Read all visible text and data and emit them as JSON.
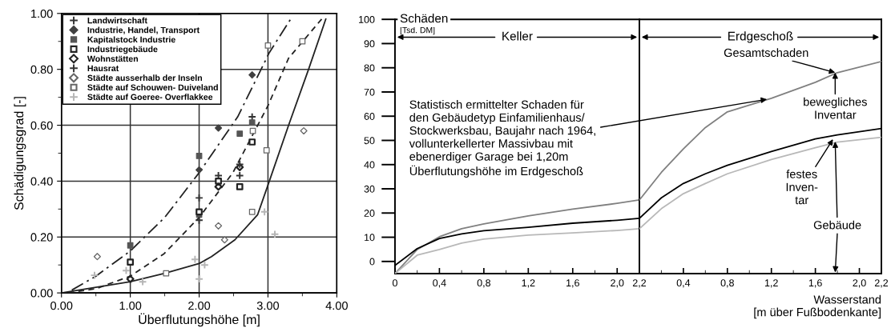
{
  "chart_data": [
    {
      "type": "scatter",
      "xlabel": "Überflutungshöhe [m]",
      "ylabel": "Schädigungsgrad [-]",
      "xlim": [
        0,
        4
      ],
      "ylim": [
        0,
        1
      ],
      "xticks": [
        {
          "value": 0,
          "label": "0.00"
        },
        {
          "value": 0.5,
          "label": null
        },
        {
          "value": 1,
          "label": "1.00"
        },
        {
          "value": 1.5,
          "label": null
        },
        {
          "value": 2,
          "label": "2.00"
        },
        {
          "value": 2.5,
          "label": null
        },
        {
          "value": 3,
          "label": "3.00"
        },
        {
          "value": 3.5,
          "label": null
        },
        {
          "value": 4,
          "label": "4.00"
        }
      ],
      "yticks": [
        {
          "value": 0,
          "label": "0.00"
        },
        {
          "value": 0.1,
          "label": null
        },
        {
          "value": 0.2,
          "label": "0.20"
        },
        {
          "value": 0.3,
          "label": null
        },
        {
          "value": 0.4,
          "label": "0.40"
        },
        {
          "value": 0.5,
          "label": null
        },
        {
          "value": 0.6,
          "label": "0.60"
        },
        {
          "value": 0.7,
          "label": null
        },
        {
          "value": 0.8,
          "label": "0.80"
        },
        {
          "value": 0.9,
          "label": null
        },
        {
          "value": 1,
          "label": "1.00"
        }
      ],
      "grid": true,
      "legend": "top left",
      "series": [
        {
          "name": "Landwirtschaft",
          "color": "#333333",
          "marker": "cross",
          "x": [
            2.0,
            2.28,
            2.77
          ],
          "values": [
            0.34,
            0.42,
            0.63
          ]
        },
        {
          "name": "Industrie, Handel, Transport",
          "color": "#404040",
          "marker": "diamond",
          "x": [
            2.0,
            2.28,
            2.77
          ],
          "values": [
            0.44,
            0.59,
            0.78
          ]
        },
        {
          "name": "Kapitalstock Industrie",
          "color": "#555555",
          "marker": "square",
          "x": [
            1.0,
            2.0,
            2.0,
            2.59,
            2.77
          ],
          "values": [
            0.17,
            0.49,
            0.28,
            0.57,
            0.61
          ]
        },
        {
          "name": "Industriegebäude",
          "color": "#222222",
          "marker": "square-open",
          "x": [
            1.0,
            2.0,
            2.28,
            2.59,
            2.77
          ],
          "values": [
            0.11,
            0.29,
            0.4,
            0.38,
            0.54
          ]
        },
        {
          "name": "Wohnstätten",
          "color": "#222222",
          "marker": "diamond-open",
          "x": [
            1.0,
            2.28,
            2.59
          ],
          "values": [
            0.05,
            0.38,
            0.45
          ]
        },
        {
          "name": "Hausrat",
          "color": "#333333",
          "marker": "cross",
          "x": [
            2.0,
            2.59,
            2.59
          ],
          "values": [
            0.26,
            0.42,
            0.46
          ]
        },
        {
          "name": "Städte ausserhalb der Inseln",
          "color": "#666666",
          "marker": "diamond-open",
          "x": [
            0.52,
            2.28,
            2.37,
            3.52
          ],
          "values": [
            0.13,
            0.24,
            0.19,
            0.58
          ]
        },
        {
          "name": "Städte auf Schouwen- Duiveland",
          "color": "#666666",
          "marker": "square-open",
          "x": [
            1.52,
            2.77,
            2.98,
            2.78,
            3.0,
            3.5
          ],
          "values": [
            0.07,
            0.29,
            0.51,
            0.58,
            0.885,
            0.9
          ]
        },
        {
          "name": "Städte auf Goeree- Overflakkee",
          "color": "#b5b5b5",
          "marker": "cross",
          "x": [
            0.48,
            0.94,
            1.18,
            1.94,
            2.0,
            2.08,
            2.95,
            3.1
          ],
          "values": [
            0.063,
            0.08,
            0.04,
            0.12,
            0.05,
            0.1,
            0.29,
            0.21
          ]
        },
        {
          "type": "line",
          "color": "#222222",
          "line_style": "solid",
          "marker": "none",
          "x": [
            0,
            0.5,
            1.0,
            1.5,
            2.0,
            2.18,
            2.52,
            2.85,
            3.02,
            3.3,
            3.59,
            3.84
          ],
          "values": [
            0,
            0.02,
            0.04,
            0.07,
            0.105,
            0.13,
            0.19,
            0.28,
            0.4,
            0.6,
            0.8,
            0.98
          ]
        },
        {
          "type": "line",
          "color": "#222222",
          "line_style": "dashed",
          "marker": "none",
          "x": [
            0.1,
            0.5,
            1.0,
            1.49,
            2.0,
            2.49,
            3.0,
            3.3,
            3.78
          ],
          "values": [
            0,
            0.015,
            0.06,
            0.14,
            0.27,
            0.43,
            0.67,
            0.84,
            0.98
          ]
        },
        {
          "type": "line",
          "color": "#222222",
          "line_style": "dashdot",
          "marker": "none",
          "x": [
            0.15,
            0.5,
            1.0,
            1.5,
            2.0,
            2.56,
            3.02,
            3.33
          ],
          "values": [
            0.01,
            0.06,
            0.15,
            0.27,
            0.43,
            0.63,
            0.86,
            0.98
          ]
        }
      ]
    },
    {
      "type": "line",
      "title": "Keller",
      "ylabel": "Schäden",
      "xlim": [
        0,
        2.2
      ],
      "ylim": [
        -5,
        100
      ],
      "xticks": [
        {
          "value": 0,
          "label": "0"
        },
        {
          "value": 0.2,
          "label": null
        },
        {
          "value": 0.4,
          "label": "0,4"
        },
        {
          "value": 0.6,
          "label": null
        },
        {
          "value": 0.8,
          "label": "0,8"
        },
        {
          "value": 1.0,
          "label": null
        },
        {
          "value": 1.2,
          "label": "1,2"
        },
        {
          "value": 1.4,
          "label": null
        },
        {
          "value": 1.6,
          "label": "1,6"
        },
        {
          "value": 1.8,
          "label": null
        },
        {
          "value": 2.0,
          "label": "2,0"
        },
        {
          "value": 2.2,
          "label": "2,2"
        }
      ],
      "yticks": [
        0,
        10,
        20,
        30,
        40,
        50,
        60,
        70,
        80,
        90,
        100
      ],
      "annotations": [
        "[Tsd. DM]"
      ],
      "series": [
        {
          "color": "#808080",
          "x": [
            0,
            0.2,
            0.4,
            0.6,
            0.8,
            1.2,
            1.6,
            2.0,
            2.2
          ],
          "values": [
            -5,
            4.9,
            10.2,
            13.5,
            15.5,
            18.8,
            21.6,
            24,
            25.4
          ]
        },
        {
          "color": "#000000",
          "x": [
            0,
            0.2,
            0.4,
            0.6,
            0.8,
            1.2,
            1.6,
            2.0,
            2.2
          ],
          "values": [
            -1.6,
            5.3,
            9.5,
            11.4,
            12.7,
            14.1,
            15.8,
            17,
            17.8
          ]
        },
        {
          "color": "#b8b8b8",
          "x": [
            0,
            0.2,
            0.4,
            0.6,
            0.8,
            1.2,
            1.6,
            2.0,
            2.2
          ],
          "values": [
            -5,
            2.6,
            4.9,
            7.6,
            9.2,
            10.9,
            11.8,
            12.8,
            13.5
          ]
        }
      ]
    },
    {
      "type": "line",
      "title": "Erdgeschoß",
      "xlabel": "Wasserstand\n[m über Fußbodenkante]",
      "xlim": [
        0,
        2.2
      ],
      "ylim": [
        -5,
        100
      ],
      "tick_labels": "x",
      "xticks": [
        {
          "value": 0.2,
          "label": null
        },
        {
          "value": 0.4,
          "label": "0,4"
        },
        {
          "value": 0.6,
          "label": null
        },
        {
          "value": 0.8,
          "label": "0,8"
        },
        {
          "value": 1.0,
          "label": null
        },
        {
          "value": 1.2,
          "label": "1,2"
        },
        {
          "value": 1.4,
          "label": null
        },
        {
          "value": 1.6,
          "label": "1,6"
        },
        {
          "value": 1.8,
          "label": null
        },
        {
          "value": 2.0,
          "label": "2,0"
        },
        {
          "value": 2.2,
          "label": "2,2"
        }
      ],
      "yticks": [
        0,
        10,
        20,
        30,
        40,
        50,
        60,
        70,
        80,
        90,
        100
      ],
      "annotations": [
        {
          "text": "Statistisch ermittelter Schaden für\nden Gebäudetyp Einfamilienhaus/\nStockwerksbau, Baujahr nach 1964,\nvollunterkellerter Massivbau mit\nebenerdiger Garage bei 1,20m\nÜberflutungshöhe im Erdgeschoß",
          "x": 1.16,
          "y": 67
        },
        {
          "text": "Gesamtschaden",
          "x": 1.78,
          "y": 78
        },
        {
          "text": "bewegliches\nInventar",
          "x": 1.78,
          "y": 78
        },
        {
          "text": "festes\nInven-\ntar",
          "x": 1.76,
          "y": 50.5
        },
        {
          "text": "Gebäude",
          "x": 1.78,
          "y": 49.5
        }
      ],
      "series": [
        {
          "color": "#808080",
          "x": [
            0,
            0.2,
            0.4,
            0.6,
            0.8,
            1.2,
            1.6,
            1.8,
            2.2
          ],
          "values": [
            25.4,
            36.8,
            46.5,
            55.3,
            61.8,
            67.4,
            74,
            78,
            82.6
          ]
        },
        {
          "color": "#000000",
          "x": [
            0,
            0.2,
            0.4,
            0.6,
            0.8,
            1.2,
            1.6,
            1.8,
            2.2
          ],
          "values": [
            17.8,
            26.3,
            32.2,
            36.2,
            39.7,
            45.4,
            50.6,
            52.3,
            54.9
          ]
        },
        {
          "color": "#b8b8b8",
          "x": [
            0,
            0.2,
            0.4,
            0.6,
            0.8,
            1.2,
            1.6,
            1.8,
            2.2
          ],
          "values": [
            13.5,
            21.8,
            28,
            32.2,
            36.2,
            42.1,
            47,
            49.3,
            51.3
          ]
        }
      ]
    }
  ]
}
